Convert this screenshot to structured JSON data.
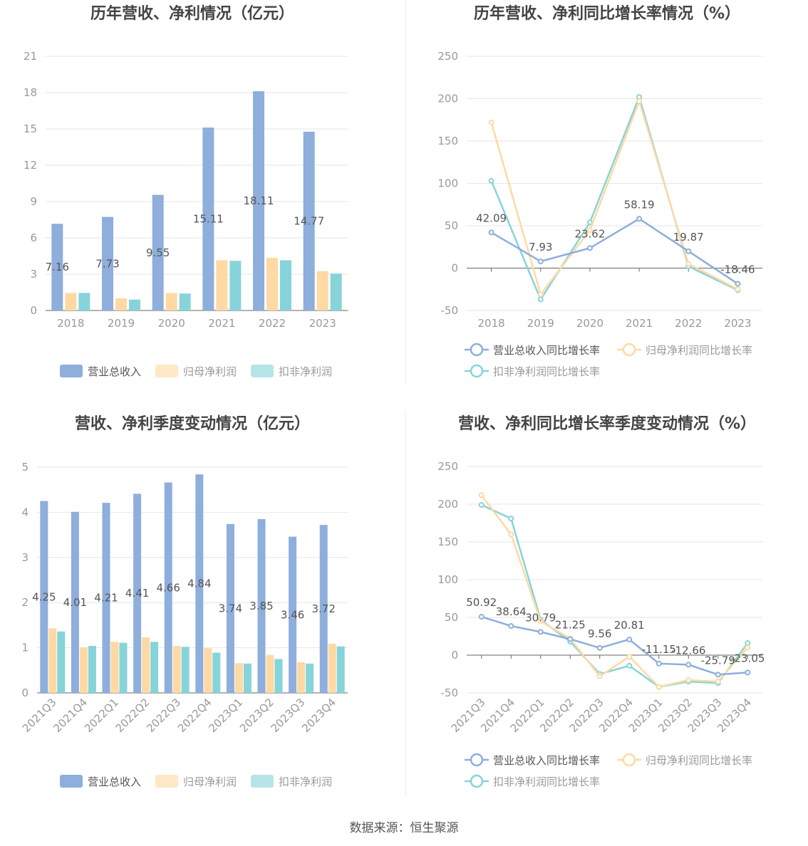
{
  "source_label": "数据来源：恒生聚源",
  "colors": {
    "revenue": "#8eaedc",
    "net_profit": "#ffd9a3",
    "deducted_profit": "#86d4d9",
    "revenue_line": "#8eaedc",
    "net_profit_line": "#ffd9a3",
    "deducted_profit_line": "#86d4d9",
    "grid": "#e6e6e6",
    "axis": "#666666"
  },
  "chart_data": [
    {
      "id": "annual-amount",
      "type": "bar",
      "title": "历年营收、净利情况（亿元）",
      "categories": [
        "2018",
        "2019",
        "2020",
        "2021",
        "2022",
        "2023"
      ],
      "ylim": [
        0,
        21
      ],
      "yticks": [
        0,
        3,
        6,
        9,
        12,
        15,
        18,
        21
      ],
      "grid": true,
      "legend_position": "bottom",
      "series": [
        {
          "name": "营业总收入",
          "values": [
            7.16,
            7.73,
            9.55,
            15.11,
            18.11,
            14.77
          ],
          "labels": [
            "7.16",
            "7.73",
            "9.55",
            "15.11",
            "18.11",
            "14.77"
          ]
        },
        {
          "name": "归母净利润",
          "values": [
            1.45,
            1.0,
            1.45,
            4.15,
            4.35,
            3.25
          ]
        },
        {
          "name": "扣非净利润",
          "values": [
            1.45,
            0.9,
            1.4,
            4.1,
            4.15,
            3.05
          ]
        }
      ]
    },
    {
      "id": "annual-growth",
      "type": "line",
      "title": "历年营收、净利同比增长率情况（%）",
      "categories": [
        "2018",
        "2019",
        "2020",
        "2021",
        "2022",
        "2023"
      ],
      "ylim": [
        -50,
        250
      ],
      "yticks": [
        -50,
        0,
        50,
        100,
        150,
        200,
        250
      ],
      "grid": true,
      "legend_position": "bottom",
      "series": [
        {
          "name": "营业总收入同比增长率",
          "values": [
            42.09,
            7.93,
            23.62,
            58.19,
            19.87,
            -18.46
          ],
          "labels": [
            "42.09",
            "7.93",
            "23.62",
            "58.19",
            "19.87",
            "-18.46"
          ]
        },
        {
          "name": "归母净利润同比增长率",
          "values": [
            172,
            -31,
            45,
            197,
            5,
            -25
          ]
        },
        {
          "name": "扣非净利润同比增长率",
          "values": [
            103,
            -37,
            54,
            202,
            2,
            -26
          ]
        }
      ]
    },
    {
      "id": "quarterly-amount",
      "type": "bar",
      "title": "营收、净利季度变动情况（亿元）",
      "categories": [
        "2021Q3",
        "2021Q4",
        "2022Q1",
        "2022Q2",
        "2022Q3",
        "2022Q4",
        "2023Q1",
        "2023Q2",
        "2023Q3",
        "2023Q4"
      ],
      "ylim": [
        0,
        5
      ],
      "yticks": [
        0,
        1,
        2,
        3,
        4,
        5
      ],
      "grid": true,
      "legend_position": "bottom",
      "series": [
        {
          "name": "营业总收入",
          "values": [
            4.25,
            4.01,
            4.21,
            4.41,
            4.66,
            4.84,
            3.74,
            3.85,
            3.46,
            3.72
          ],
          "labels": [
            "4.25",
            "4.01",
            "4.21",
            "4.41",
            "4.66",
            "4.84",
            "3.74",
            "3.85",
            "3.46",
            "3.72"
          ]
        },
        {
          "name": "归母净利润",
          "values": [
            1.43,
            1.01,
            1.13,
            1.23,
            1.04,
            0.99,
            0.66,
            0.84,
            0.68,
            1.09
          ]
        },
        {
          "name": "扣非净利润",
          "values": [
            1.36,
            1.04,
            1.11,
            1.13,
            1.02,
            0.89,
            0.65,
            0.75,
            0.65,
            1.03
          ]
        }
      ]
    },
    {
      "id": "quarterly-growth",
      "type": "line",
      "title": "营收、净利同比增长率季度变动情况（%）",
      "categories": [
        "2021Q3",
        "2021Q4",
        "2022Q1",
        "2022Q2",
        "2022Q3",
        "2022Q4",
        "2023Q1",
        "2023Q2",
        "2023Q3",
        "2023Q4"
      ],
      "ylim": [
        -50,
        250
      ],
      "yticks": [
        -50,
        0,
        50,
        100,
        150,
        200,
        250
      ],
      "grid": true,
      "legend_position": "bottom",
      "series": [
        {
          "name": "营业总收入同比增长率",
          "values": [
            50.92,
            38.64,
            30.79,
            21.25,
            9.56,
            20.81,
            -11.15,
            -12.66,
            -25.79,
            -23.05
          ],
          "labels": [
            "50.92",
            "38.64",
            "30.79",
            "21.25",
            "9.56",
            "20.81",
            "-11.15",
            "-12.66",
            "-25.79",
            "-23.05"
          ]
        },
        {
          "name": "归母净利润同比增长率",
          "values": [
            212,
            160,
            45,
            22,
            -28,
            -2,
            -42,
            -33,
            -35,
            10
          ]
        },
        {
          "name": "扣非净利润同比增长率",
          "values": [
            199,
            181,
            47,
            18,
            -25,
            -14,
            -42,
            -35,
            -37,
            16
          ]
        }
      ]
    }
  ]
}
